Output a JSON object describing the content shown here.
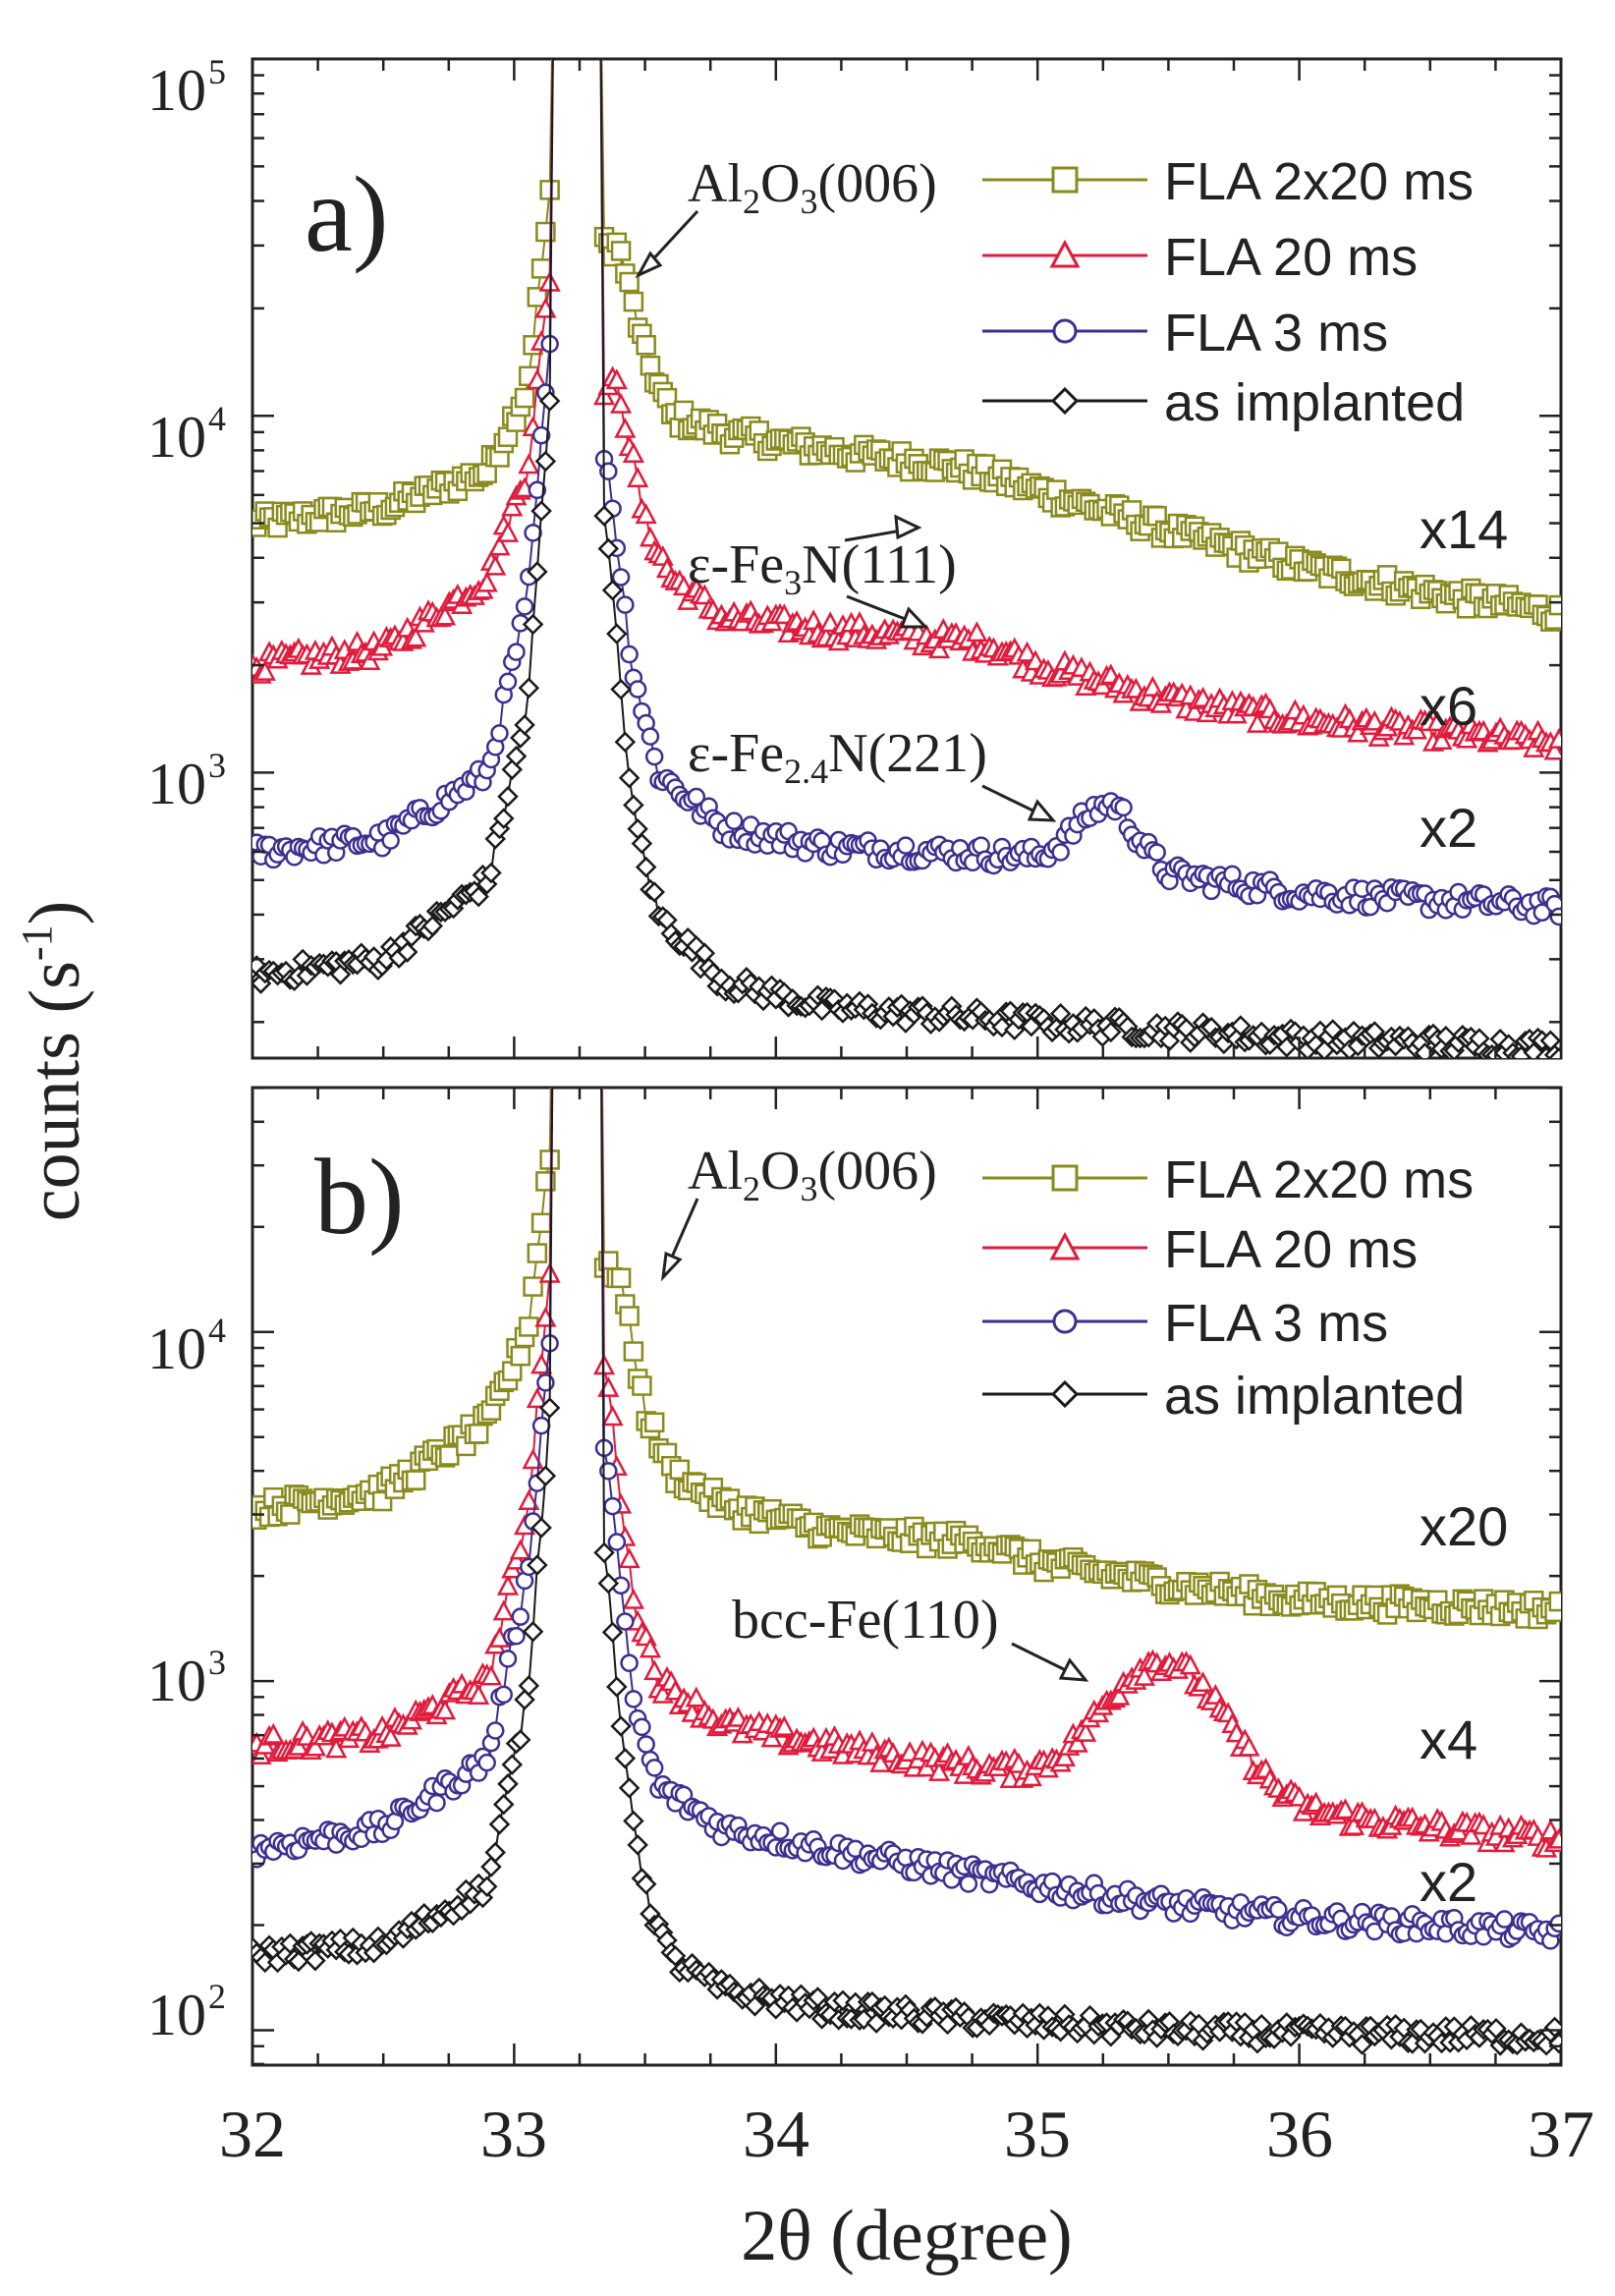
{
  "chart_data": [
    {
      "type": "line",
      "panel_label": "a)",
      "xlabel": "2θ (degree)",
      "ylabel": "counts (s",
      "ylabel_sup": "-1",
      "ylabel_end": ")",
      "xlim": [
        32,
        37
      ],
      "ylim_log10": [
        2.2,
        5
      ],
      "y_ticks": [
        {
          "base": "10",
          "exp": "3",
          "value": 3
        },
        {
          "base": "10",
          "exp": "4",
          "value": 4
        },
        {
          "base": "10",
          "exp": "5",
          "value": 5
        }
      ],
      "annotation_substrate": {
        "main": "Al",
        "sub1": "2",
        "mid": "O",
        "sub2": "3",
        "tail": "(006)"
      },
      "annotations": [
        {
          "id": "eps-fe3n",
          "pre": "ε-Fe",
          "sub": "3",
          "post": "N(111)"
        },
        {
          "id": "eps-fe24n",
          "pre": "ε-Fe",
          "sub": "2.4",
          "post": "N(221)"
        }
      ],
      "legend": [
        "FLA 2x20 ms",
        "FLA 20 ms",
        "FLA 3 ms",
        "as implanted"
      ],
      "series": [
        {
          "name": "FLA 2x20 ms",
          "color": "#8a8a1e",
          "marker": "square",
          "scale_label": "x14",
          "baseline": [
            [
              32,
              5000
            ],
            [
              32.5,
              5500
            ],
            [
              32.9,
              7000
            ],
            [
              33.05,
              12000
            ],
            [
              33.15,
              50000
            ]
          ],
          "tail": [
            [
              33.4,
              30000
            ],
            [
              33.5,
              15000
            ],
            [
              33.6,
              10000
            ],
            [
              33.8,
              9000
            ],
            [
              34.2,
              8000
            ],
            [
              34.7,
              7200
            ],
            [
              35,
              6200
            ],
            [
              35.5,
              4800
            ],
            [
              36,
              3800
            ],
            [
              36.5,
              3200
            ],
            [
              37,
              2800
            ]
          ],
          "peak": []
        },
        {
          "name": "FLA 20 ms",
          "color": "#e01b3c",
          "marker": "triangle",
          "scale_label": "x6",
          "baseline": [
            [
              32,
              2000
            ],
            [
              32.5,
              2200
            ],
            [
              32.9,
              3500
            ],
            [
              33.05,
              7000
            ],
            [
              33.15,
              30000
            ]
          ],
          "tail": [
            [
              33.4,
              12000
            ],
            [
              33.5,
              5000
            ],
            [
              33.6,
              3500
            ],
            [
              33.8,
              2700
            ],
            [
              34.2,
              2500
            ],
            [
              34.8,
              2300
            ],
            [
              35,
              2000
            ],
            [
              35.5,
              1600
            ],
            [
              36,
              1400
            ],
            [
              36.5,
              1300
            ],
            [
              37,
              1200
            ]
          ],
          "peak": []
        },
        {
          "name": "FLA 3 ms",
          "color": "#3d2f8f",
          "marker": "circle",
          "scale_label": "x2",
          "baseline": [
            [
              32,
              600
            ],
            [
              32.5,
              650
            ],
            [
              32.9,
              1000
            ],
            [
              33.05,
              3000
            ],
            [
              33.15,
              20000
            ]
          ],
          "tail": [
            [
              33.35,
              8000
            ],
            [
              33.45,
              2000
            ],
            [
              33.55,
              1000
            ],
            [
              33.8,
              700
            ],
            [
              34.2,
              620
            ],
            [
              34.6,
              600
            ],
            [
              35,
              580
            ],
            [
              35.3,
              700
            ],
            [
              35.5,
              520
            ],
            [
              36,
              460
            ],
            [
              36.5,
              440
            ],
            [
              37,
              420
            ]
          ],
          "peak": [
            35.25,
            0.09,
            130
          ]
        },
        {
          "name": "as implanted",
          "color": "#1a1a1a",
          "marker": "diamond",
          "scale_label": "",
          "baseline": [
            [
              32,
              270
            ],
            [
              32.5,
              300
            ],
            [
              32.9,
              500
            ],
            [
              33.05,
              1500
            ],
            [
              33.15,
              15000
            ]
          ],
          "tail": [
            [
              33.35,
              5000
            ],
            [
              33.45,
              800
            ],
            [
              33.55,
              400
            ],
            [
              33.8,
              260
            ],
            [
              34.2,
              220
            ],
            [
              35,
              200
            ],
            [
              35.5,
              190
            ],
            [
              36,
              180
            ],
            [
              37,
              170
            ]
          ],
          "peak": []
        }
      ]
    },
    {
      "type": "line",
      "panel_label": "b)",
      "xlabel": "2θ (degree)",
      "xlim": [
        32,
        37
      ],
      "x_ticks": [
        "32",
        "33",
        "34",
        "35",
        "36",
        "37"
      ],
      "ylim_log10": [
        1.9,
        4.7
      ],
      "y_ticks": [
        {
          "base": "10",
          "exp": "2",
          "value": 2
        },
        {
          "base": "10",
          "exp": "3",
          "value": 3
        },
        {
          "base": "10",
          "exp": "4",
          "value": 4
        }
      ],
      "annotation_substrate": {
        "main": "Al",
        "sub1": "2",
        "mid": "O",
        "sub2": "3",
        "tail": "(006)"
      },
      "annotations": [
        {
          "id": "bcc-fe",
          "pre": "bcc-Fe(110)",
          "sub": "",
          "post": ""
        }
      ],
      "legend": [
        "FLA 2x20 ms",
        "FLA 20 ms",
        "FLA 3 ms",
        "as implanted"
      ],
      "series": [
        {
          "name": "FLA 2x20 ms",
          "color": "#8a8a1e",
          "marker": "square",
          "scale_label": "x20",
          "baseline": [
            [
              32,
              3100
            ],
            [
              32.5,
              3500
            ],
            [
              32.9,
              5500
            ],
            [
              33.05,
              10000
            ],
            [
              33.15,
              40000
            ]
          ],
          "tail": [
            [
              33.4,
              15000
            ],
            [
              33.5,
              6000
            ],
            [
              33.6,
              4000
            ],
            [
              33.8,
              3200
            ],
            [
              34.2,
              2700
            ],
            [
              34.8,
              2500
            ],
            [
              35,
              2200
            ],
            [
              35.5,
              1900
            ],
            [
              36,
              1700
            ],
            [
              36.5,
              1650
            ],
            [
              37,
              1600
            ]
          ],
          "peak": []
        },
        {
          "name": "FLA 20 ms",
          "color": "#e01b3c",
          "marker": "triangle",
          "scale_label": "x4",
          "baseline": [
            [
              32,
              650
            ],
            [
              32.5,
              700
            ],
            [
              32.9,
              1000
            ],
            [
              33.05,
              3000
            ],
            [
              33.15,
              20000
            ]
          ],
          "tail": [
            [
              33.35,
              8000
            ],
            [
              33.45,
              1800
            ],
            [
              33.55,
              1000
            ],
            [
              33.8,
              750
            ],
            [
              34.2,
              650
            ],
            [
              34.8,
              560
            ],
            [
              35.1,
              520
            ],
            [
              35.5,
              480
            ],
            [
              36,
              420
            ],
            [
              36.5,
              380
            ],
            [
              37,
              350
            ]
          ],
          "peak": [
            35.48,
            0.2,
            650
          ]
        },
        {
          "name": "FLA 3 ms",
          "color": "#3d2f8f",
          "marker": "circle",
          "scale_label": "x2",
          "baseline": [
            [
              32,
              330
            ],
            [
              32.5,
              380
            ],
            [
              32.9,
              600
            ],
            [
              33.05,
              2000
            ],
            [
              33.15,
              12000
            ]
          ],
          "tail": [
            [
              33.35,
              5000
            ],
            [
              33.45,
              900
            ],
            [
              33.55,
              500
            ],
            [
              33.8,
              380
            ],
            [
              34.2,
              330
            ],
            [
              35,
              260
            ],
            [
              35.5,
              230
            ],
            [
              36,
              210
            ],
            [
              36.5,
              200
            ],
            [
              37,
              190
            ]
          ],
          "peak": []
        },
        {
          "name": "as implanted",
          "color": "#1a1a1a",
          "marker": "diamond",
          "scale_label": "",
          "baseline": [
            [
              32,
              165
            ],
            [
              32.5,
              175
            ],
            [
              32.9,
              260
            ],
            [
              33.05,
              900
            ],
            [
              33.15,
              8000
            ]
          ],
          "tail": [
            [
              33.3,
              6000
            ],
            [
              33.4,
              800
            ],
            [
              33.5,
              250
            ],
            [
              33.6,
              160
            ],
            [
              33.8,
              130
            ],
            [
              34.2,
              115
            ],
            [
              35,
              105
            ],
            [
              35.5,
              100
            ],
            [
              36,
              98
            ],
            [
              37,
              96
            ]
          ],
          "peak": []
        }
      ]
    }
  ]
}
